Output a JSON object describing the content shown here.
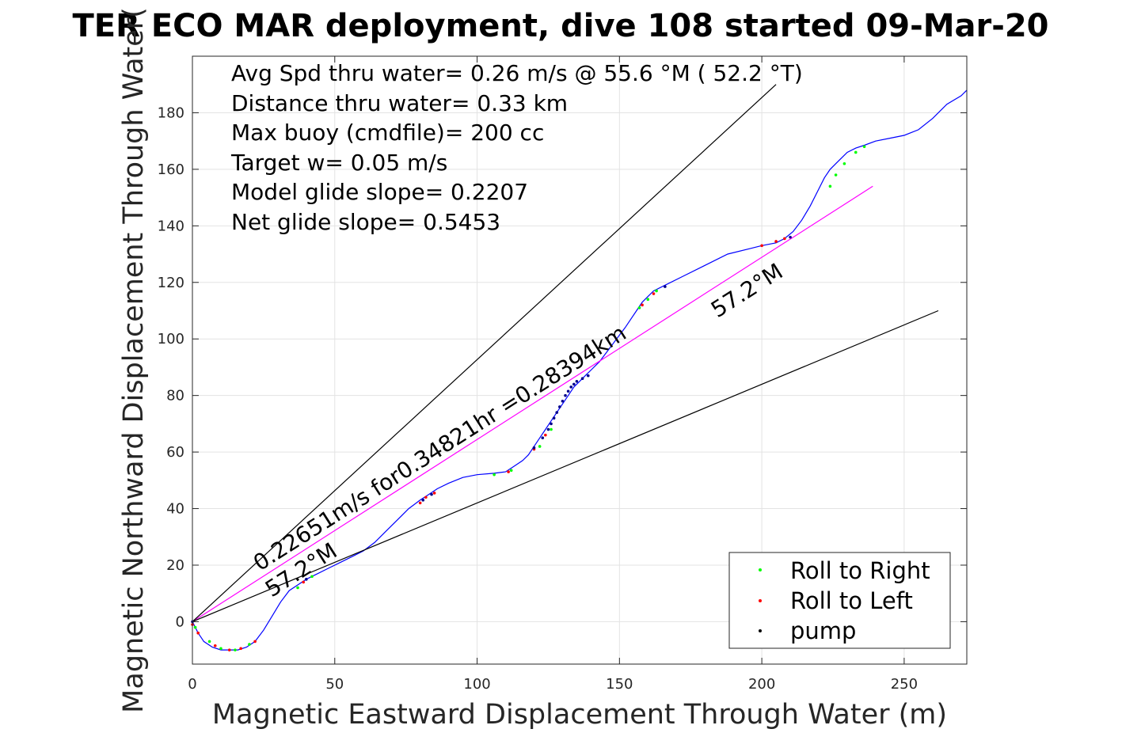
{
  "chart_data": {
    "type": "line",
    "title": "TER ECO MAR deployment, dive 108 started 09-Mar-20",
    "xlabel": "Magnetic Eastward Displacement Through Water (m)",
    "ylabel": "Magnetic Northward Displacement Through Water(",
    "xlim": [
      0,
      272
    ],
    "ylim": [
      -15,
      200
    ],
    "xticks": [
      0,
      50,
      100,
      150,
      200,
      250
    ],
    "yticks": [
      0,
      20,
      40,
      60,
      80,
      100,
      120,
      140,
      160,
      180
    ],
    "grid": true,
    "stats": [
      "Avg Spd thru water=  0.26 m/s @  55.6 °M ( 52.2 °T)",
      "Distance thru water=  0.33 km",
      "Max buoy (cmdfile)= 200 cc",
      "Target w= 0.05 m/s",
      "Model glide slope= 0.2207",
      "Net glide slope= 0.5453"
    ],
    "annotations": {
      "speed_label": "0.22651m/s for0.34821hr =0.28394km",
      "heading_label_lower": "57.2°M",
      "heading_label_upper": "57.2°M"
    },
    "legend": {
      "placement": "bottom-right",
      "entries": [
        {
          "label": "Roll to Right",
          "color": "#00ff00"
        },
        {
          "label": "Roll to Left",
          "color": "#ff0000"
        },
        {
          "label": "pump",
          "color": "#000000"
        }
      ]
    },
    "series": [
      {
        "color": "#0000ff",
        "x": [
          0,
          2,
          4,
          7,
          10,
          13,
          16,
          19,
          22,
          25,
          28,
          31,
          34,
          37,
          40,
          44,
          48,
          52,
          56,
          60,
          64,
          68,
          72,
          76,
          80,
          83,
          86,
          90,
          95,
          100,
          106,
          110,
          113,
          116,
          118,
          120,
          122,
          124,
          126,
          128,
          130,
          132,
          134,
          136,
          138,
          140,
          143,
          146,
          149,
          152,
          154,
          156,
          158,
          160,
          162,
          166,
          172,
          180,
          188,
          196,
          200,
          205,
          208,
          211,
          214,
          217,
          220,
          222,
          224,
          226,
          228,
          230,
          233,
          236,
          240,
          245,
          250,
          255,
          260,
          265,
          270,
          272
        ],
        "y": [
          0,
          -4,
          -7,
          -9,
          -10,
          -10,
          -10,
          -9,
          -7,
          -3,
          2,
          7,
          11,
          13,
          15,
          17,
          19,
          21,
          23,
          25,
          28,
          32,
          36,
          40,
          43,
          45,
          47,
          49,
          51,
          52,
          52.5,
          53,
          55,
          57,
          59,
          62,
          65,
          68,
          71,
          74,
          77,
          80,
          83,
          85,
          87,
          89,
          92,
          96,
          100,
          104,
          107,
          110,
          113,
          115,
          117,
          119,
          122,
          126,
          130,
          132,
          133,
          134,
          135.5,
          138,
          142,
          147,
          153,
          157,
          160,
          162,
          164,
          166,
          167.5,
          168.5,
          170,
          171,
          172,
          174,
          178,
          183,
          186,
          188
        ]
      },
      {
        "color": "#ff00ff",
        "x": [
          0,
          239
        ],
        "y": [
          0,
          154
        ]
      },
      {
        "color": "#000000",
        "x": [
          0,
          205
        ],
        "y": [
          0,
          190
        ]
      },
      {
        "color": "#000000",
        "x": [
          0,
          262
        ],
        "y": [
          0,
          110
        ]
      }
    ],
    "markers": {
      "roll_right_points": [
        [
          1,
          -2
        ],
        [
          6,
          -7
        ],
        [
          10,
          -9.5
        ],
        [
          15,
          -10
        ],
        [
          20,
          -8
        ],
        [
          37,
          12
        ],
        [
          42,
          16
        ],
        [
          106,
          52
        ],
        [
          112,
          53.5
        ],
        [
          122,
          62
        ],
        [
          126,
          68
        ],
        [
          157,
          111
        ],
        [
          160,
          114
        ],
        [
          163,
          117
        ],
        [
          224,
          154
        ],
        [
          226,
          158
        ],
        [
          229,
          162
        ],
        [
          233,
          166
        ],
        [
          236,
          168
        ]
      ],
      "roll_left_points": [
        [
          0,
          -1
        ],
        [
          2,
          -4
        ],
        [
          8,
          -8.5
        ],
        [
          13,
          -10
        ],
        [
          17,
          -9.5
        ],
        [
          22,
          -7
        ],
        [
          39,
          14
        ],
        [
          80,
          42
        ],
        [
          82,
          44
        ],
        [
          85,
          45.5
        ],
        [
          111,
          53
        ],
        [
          120,
          61
        ],
        [
          124,
          66
        ],
        [
          158,
          112
        ],
        [
          162,
          116
        ],
        [
          200,
          133
        ],
        [
          205,
          134.5
        ],
        [
          208,
          135.5
        ]
      ],
      "pump_points": [
        [
          0,
          0
        ],
        [
          40,
          15
        ],
        [
          81,
          43
        ],
        [
          84,
          45
        ],
        [
          120,
          61.5
        ],
        [
          123,
          65
        ],
        [
          125,
          68
        ],
        [
          126,
          70
        ],
        [
          127,
          72
        ],
        [
          128,
          74
        ],
        [
          129,
          76
        ],
        [
          130,
          78
        ],
        [
          131,
          80
        ],
        [
          132,
          81.5
        ],
        [
          133,
          83
        ],
        [
          134,
          84
        ],
        [
          135,
          85
        ],
        [
          137,
          86
        ],
        [
          139,
          87
        ],
        [
          166,
          118.5
        ],
        [
          210,
          136
        ]
      ]
    }
  }
}
